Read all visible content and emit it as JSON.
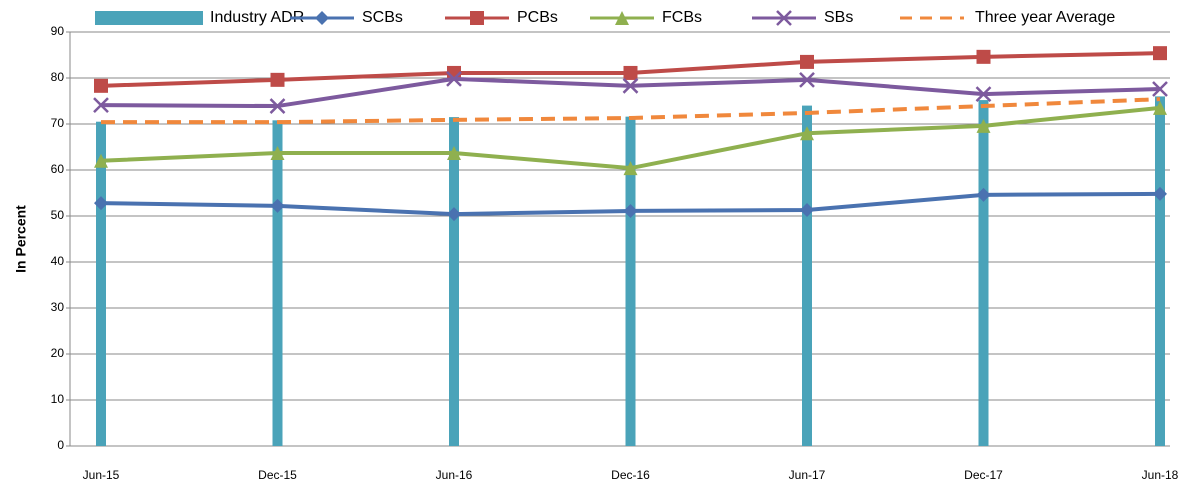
{
  "chart_data": {
    "type": "combo",
    "y_label": "In Percent",
    "categories": [
      "Jun-15",
      "Dec-15",
      "Jun-16",
      "Dec-16",
      "Jun-17",
      "Dec-17",
      "Jun-18"
    ],
    "ylim": [
      0,
      90
    ],
    "yticks": [
      0,
      10,
      20,
      30,
      40,
      50,
      60,
      70,
      80,
      90
    ],
    "grid": true,
    "legend_position": "top",
    "series": [
      {
        "name": "Industry ADR",
        "type": "bar",
        "color": "#4aa3b9",
        "values": [
          70.5,
          70.8,
          71.5,
          71.6,
          74.0,
          75.2,
          76.0
        ]
      },
      {
        "name": "SCBs",
        "type": "line",
        "marker": "diamond",
        "color": "#4a72b0",
        "values": [
          52.8,
          52.2,
          50.4,
          51.1,
          51.3,
          54.6,
          54.8
        ]
      },
      {
        "name": "PCBs",
        "type": "line",
        "marker": "square",
        "color": "#be4b48",
        "values": [
          78.3,
          79.6,
          81.1,
          81.1,
          83.5,
          84.6,
          85.4
        ]
      },
      {
        "name": "FCBs",
        "type": "line",
        "marker": "triangle",
        "color": "#8fb04f",
        "values": [
          62.0,
          63.7,
          63.7,
          60.4,
          68.0,
          69.6,
          73.5
        ]
      },
      {
        "name": "SBs",
        "type": "line",
        "marker": "x",
        "color": "#7d5a9e",
        "values": [
          74.1,
          73.9,
          79.8,
          78.3,
          79.6,
          76.5,
          77.6
        ]
      },
      {
        "name": "Three year Average",
        "type": "line",
        "dash": true,
        "color": "#f0883c",
        "values": [
          70.4,
          70.4,
          70.9,
          71.3,
          72.4,
          73.9,
          75.4
        ]
      }
    ]
  }
}
